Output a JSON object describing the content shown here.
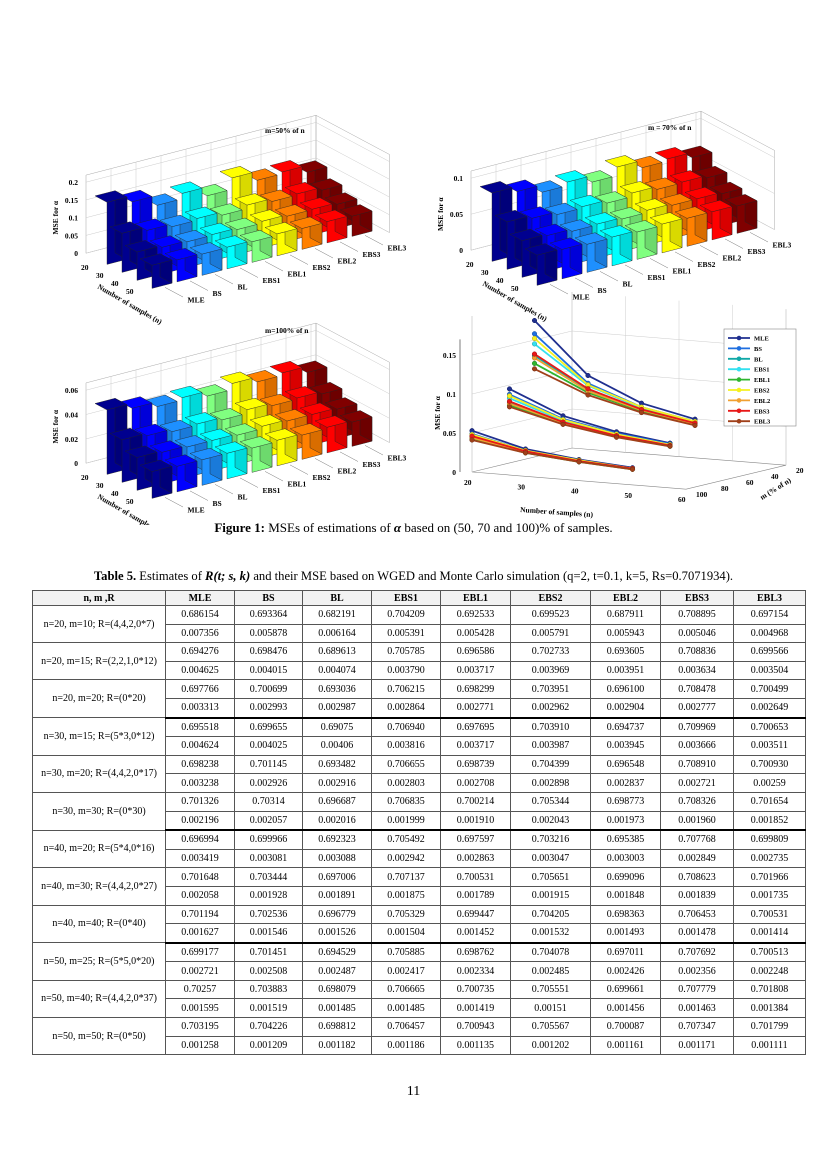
{
  "figure": {
    "caption_label": "Figure 1:",
    "caption_text_1": " MSEs of estimations of ",
    "caption_symbol": "α",
    "caption_text_2": " based on (50, 70 and 100)% of samples."
  },
  "chart_data": [
    {
      "type": "bar3d",
      "title": "m=50% of n",
      "zlabel": "MSE for α",
      "ylabel": "Number of samples (n)",
      "zticks": [
        "0",
        "0.05",
        "0.1",
        "0.15",
        "0.2"
      ],
      "zlim": [
        0,
        0.2
      ],
      "n": [
        20,
        30,
        40,
        50
      ],
      "methods": [
        "MLE",
        "BS",
        "BL",
        "EBS1",
        "EBL1",
        "EBS2",
        "EBL2",
        "EBS3",
        "EBL3"
      ],
      "values": [
        [
          0.175,
          0.11,
          0.08,
          0.065
        ],
        [
          0.158,
          0.1,
          0.075,
          0.062
        ],
        [
          0.13,
          0.092,
          0.072,
          0.06
        ],
        [
          0.145,
          0.097,
          0.074,
          0.061
        ],
        [
          0.12,
          0.088,
          0.07,
          0.058
        ],
        [
          0.152,
          0.098,
          0.075,
          0.062
        ],
        [
          0.127,
          0.09,
          0.071,
          0.059
        ],
        [
          0.132,
          0.093,
          0.072,
          0.06
        ],
        [
          0.113,
          0.085,
          0.068,
          0.057
        ]
      ]
    },
    {
      "type": "bar3d",
      "title": "m = 70% of n",
      "zlabel": "MSE for α",
      "ylabel": "Number of samples (n)",
      "zticks": [
        "0",
        "0.05",
        "0.1"
      ],
      "zlim": [
        0,
        0.1
      ],
      "n": [
        20,
        30,
        40,
        50
      ],
      "methods": [
        "MLE",
        "BS",
        "BL",
        "EBS1",
        "EBL1",
        "EBS2",
        "EBL2",
        "EBS3",
        "EBL3"
      ],
      "values": [
        [
          0.095,
          0.066,
          0.051,
          0.042
        ],
        [
          0.088,
          0.062,
          0.049,
          0.041
        ],
        [
          0.078,
          0.058,
          0.046,
          0.039
        ],
        [
          0.083,
          0.06,
          0.047,
          0.04
        ],
        [
          0.074,
          0.056,
          0.045,
          0.038
        ],
        [
          0.086,
          0.061,
          0.048,
          0.04
        ],
        [
          0.076,
          0.057,
          0.046,
          0.039
        ],
        [
          0.079,
          0.058,
          0.046,
          0.039
        ],
        [
          0.072,
          0.055,
          0.044,
          0.038
        ]
      ]
    },
    {
      "type": "bar3d",
      "title": "m=100% of n",
      "zlabel": "MSE for α",
      "ylabel": "Number of samples (n)",
      "zticks": [
        "0",
        "0.02",
        "0.04",
        "0.06"
      ],
      "zlim": [
        0,
        0.06
      ],
      "n": [
        20,
        30,
        40,
        50
      ],
      "methods": [
        "MLE",
        "BS",
        "BL",
        "EBS1",
        "EBL1",
        "EBS2",
        "EBL2",
        "EBS3",
        "EBL3"
      ],
      "values": [
        [
          0.053,
          0.035,
          0.027,
          0.022
        ],
        [
          0.049,
          0.033,
          0.026,
          0.021
        ],
        [
          0.045,
          0.031,
          0.025,
          0.021
        ],
        [
          0.047,
          0.032,
          0.025,
          0.021
        ],
        [
          0.043,
          0.03,
          0.024,
          0.02
        ],
        [
          0.048,
          0.033,
          0.026,
          0.021
        ],
        [
          0.044,
          0.031,
          0.025,
          0.02
        ],
        [
          0.046,
          0.032,
          0.025,
          0.021
        ],
        [
          0.041,
          0.03,
          0.024,
          0.02
        ]
      ]
    },
    {
      "type": "line3d",
      "zlabel": "MSE for α",
      "xlabel": "Number of samples (n)",
      "ylabel": "m (% of n)",
      "zticks": [
        "0",
        "0.05",
        "0.1",
        "0.15"
      ],
      "xticks": [
        "20",
        "30",
        "40",
        "50",
        "60"
      ],
      "yticks": [
        "20",
        "40",
        "60",
        "80",
        "100"
      ],
      "n": [
        20,
        30,
        40,
        50
      ],
      "m": [
        50,
        70,
        100
      ],
      "legend_position": "top-right",
      "series": [
        {
          "name": "MLE",
          "color": "#1f2f8f",
          "values": [
            [
              0.175,
              0.11,
              0.08,
              0.065
            ],
            [
              0.095,
              0.066,
              0.051,
              0.042
            ],
            [
              0.053,
              0.035,
              0.027,
              0.022
            ]
          ]
        },
        {
          "name": "BS",
          "color": "#1f6fe0",
          "values": [
            [
              0.158,
              0.1,
              0.075,
              0.062
            ],
            [
              0.088,
              0.062,
              0.049,
              0.041
            ],
            [
              0.049,
              0.033,
              0.026,
              0.021
            ]
          ]
        },
        {
          "name": "BL",
          "color": "#10a8a8",
          "values": [
            [
              0.13,
              0.092,
              0.072,
              0.06
            ],
            [
              0.078,
              0.058,
              0.046,
              0.039
            ],
            [
              0.045,
              0.031,
              0.025,
              0.021
            ]
          ]
        },
        {
          "name": "EBS1",
          "color": "#33e0f0",
          "values": [
            [
              0.145,
              0.097,
              0.074,
              0.061
            ],
            [
              0.083,
              0.06,
              0.047,
              0.04
            ],
            [
              0.047,
              0.032,
              0.025,
              0.021
            ]
          ]
        },
        {
          "name": "EBL1",
          "color": "#2fb52f",
          "values": [
            [
              0.12,
              0.088,
              0.07,
              0.058
            ],
            [
              0.074,
              0.056,
              0.045,
              0.038
            ],
            [
              0.043,
              0.03,
              0.024,
              0.02
            ]
          ]
        },
        {
          "name": "EBS2",
          "color": "#f5f020",
          "values": [
            [
              0.152,
              0.098,
              0.075,
              0.062
            ],
            [
              0.086,
              0.061,
              0.048,
              0.04
            ],
            [
              0.048,
              0.033,
              0.026,
              0.021
            ]
          ]
        },
        {
          "name": "EBL2",
          "color": "#f0a030",
          "values": [
            [
              0.127,
              0.09,
              0.071,
              0.059
            ],
            [
              0.076,
              0.057,
              0.046,
              0.039
            ],
            [
              0.044,
              0.031,
              0.025,
              0.02
            ]
          ]
        },
        {
          "name": "EBS3",
          "color": "#e81818",
          "values": [
            [
              0.132,
              0.093,
              0.072,
              0.06
            ],
            [
              0.079,
              0.058,
              0.046,
              0.039
            ],
            [
              0.046,
              0.032,
              0.025,
              0.021
            ]
          ]
        },
        {
          "name": "EBL3",
          "color": "#a0401a",
          "values": [
            [
              0.113,
              0.085,
              0.068,
              0.057
            ],
            [
              0.072,
              0.055,
              0.044,
              0.038
            ],
            [
              0.041,
              0.03,
              0.024,
              0.02
            ]
          ]
        }
      ]
    }
  ],
  "method_colors": [
    "#00008f",
    "#0000ff",
    "#1e90ff",
    "#00ffff",
    "#80ff80",
    "#ffff00",
    "#ff8000",
    "#ff0000",
    "#800000"
  ],
  "table": {
    "caption_label": "Table 5.",
    "caption_text_1": " Estimates of ",
    "caption_math": "R(t; s, k)",
    "caption_text_2": " and their MSE based on WGED and Monte Carlo simulation (q=2, t=0.1, k=5, Rs=0.7071934).",
    "headers": [
      "n, m ,R",
      "MLE",
      "BS",
      "BL",
      "EBS1",
      "EBL1",
      "EBS2",
      "EBL2",
      "EBS3",
      "EBL3"
    ],
    "groups": [
      {
        "label": "n=20, m=10; R=(4,4,2,0*7)",
        "est": [
          "0.686154",
          "0.693364",
          "0.682191",
          "0.704209",
          "0.692533",
          "0.699523",
          "0.687911",
          "0.708895",
          "0.697154"
        ],
        "mse": [
          "0.007356",
          "0.005878",
          "0.006164",
          "0.005391",
          "0.005428",
          "0.005791",
          "0.005943",
          "0.005046",
          "0.004968"
        ]
      },
      {
        "label": "n=20, m=15; R=(2,2,1,0*12)",
        "est": [
          "0.694276",
          "0.698476",
          "0.689613",
          "0.705785",
          "0.696586",
          "0.702733",
          "0.693605",
          "0.708836",
          "0.699566"
        ],
        "mse": [
          "0.004625",
          "0.004015",
          "0.004074",
          "0.003790",
          "0.003717",
          "0.003969",
          "0.003951",
          "0.003634",
          "0.003504"
        ]
      },
      {
        "label": "n=20, m=20; R=(0*20)",
        "est": [
          "0.697766",
          "0.700699",
          "0.693036",
          "0.706215",
          "0.698299",
          "0.703951",
          "0.696100",
          "0.708478",
          "0.700499"
        ],
        "mse": [
          "0.003313",
          "0.002993",
          "0.002987",
          "0.002864",
          "0.002771",
          "0.002962",
          "0.002904",
          "0.002777",
          "0.002649"
        ]
      },
      {
        "label": "n=30, m=15; R=(5*3,0*12)",
        "est": [
          "0.695518",
          "0.699655",
          "0.69075",
          "0.706940",
          "0.697695",
          "0.703910",
          "0.694737",
          "0.709969",
          "0.700653"
        ],
        "mse": [
          "0.004624",
          "0.004025",
          "0.00406",
          "0.003816",
          "0.003717",
          "0.003987",
          "0.003945",
          "0.003666",
          "0.003511"
        ]
      },
      {
        "label": "n=30, m=20; R=(4,4,2,0*17)",
        "est": [
          "0.698238",
          "0.701145",
          "0.693482",
          "0.706655",
          "0.698739",
          "0.704399",
          "0.696548",
          "0.708910",
          "0.700930"
        ],
        "mse": [
          "0.003238",
          "0.002926",
          "0.002916",
          "0.002803",
          "0.002708",
          "0.002898",
          "0.002837",
          "0.002721",
          "0.00259"
        ]
      },
      {
        "label": "n=30, m=30; R=(0*30)",
        "est": [
          "0.701326",
          "0.70314",
          "0.696687",
          "0.706835",
          "0.700214",
          "0.705344",
          "0.698773",
          "0.708326",
          "0.701654"
        ],
        "mse": [
          "0.002196",
          "0.002057",
          "0.002016",
          "0.001999",
          "0.001910",
          "0.002043",
          "0.001973",
          "0.001960",
          "0.001852"
        ]
      },
      {
        "label": "n=40, m=20; R=(5*4,0*16)",
        "est": [
          "0.696994",
          "0.699966",
          "0.692323",
          "0.705492",
          "0.697597",
          "0.703216",
          "0.695385",
          "0.707768",
          "0.699809"
        ],
        "mse": [
          "0.003419",
          "0.003081",
          "0.003088",
          "0.002942",
          "0.002863",
          "0.003047",
          "0.003003",
          "0.002849",
          "0.002735"
        ]
      },
      {
        "label": "n=40, m=30; R=(4,4,2,0*27)",
        "est": [
          "0.701648",
          "0.703444",
          "0.697006",
          "0.707137",
          "0.700531",
          "0.705651",
          "0.699096",
          "0.708623",
          "0.701966"
        ],
        "mse": [
          "0.002058",
          "0.001928",
          "0.001891",
          "0.001875",
          "0.001789",
          "0.001915",
          "0.001848",
          "0.001839",
          "0.001735"
        ]
      },
      {
        "label": "n=40, m=40; R=(0*40)",
        "est": [
          "0.701194",
          "0.702536",
          "0.696779",
          "0.705329",
          "0.699447",
          "0.704205",
          "0.698363",
          "0.706453",
          "0.700531"
        ],
        "mse": [
          "0.001627",
          "0.001546",
          "0.001526",
          "0.001504",
          "0.001452",
          "0.001532",
          "0.001493",
          "0.001478",
          "0.001414"
        ]
      },
      {
        "label": "n=50, m=25; R=(5*5,0*20)",
        "est": [
          "0.699177",
          "0.701451",
          "0.694529",
          "0.705885",
          "0.698762",
          "0.704078",
          "0.697011",
          "0.707692",
          "0.700513"
        ],
        "mse": [
          "0.002721",
          "0.002508",
          "0.002487",
          "0.002417",
          "0.002334",
          "0.002485",
          "0.002426",
          "0.002356",
          "0.002248"
        ]
      },
      {
        "label": "n=50, m=40; R=(4,4,2,0*37)",
        "est": [
          "0.70257",
          "0.703883",
          "0.698079",
          "0.706665",
          "0.700735",
          "0.705551",
          "0.699661",
          "0.707779",
          "0.701808"
        ],
        "mse": [
          "0.001595",
          "0.001519",
          "0.001485",
          "0.001485",
          "0.001419",
          "0.00151",
          "0.001456",
          "0.001463",
          "0.001384"
        ]
      },
      {
        "label": "n=50, m=50; R=(0*50)",
        "est": [
          "0.703195",
          "0.704226",
          "0.698812",
          "0.706457",
          "0.700943",
          "0.705567",
          "0.700087",
          "0.707347",
          "0.701799"
        ],
        "mse": [
          "0.001258",
          "0.001209",
          "0.001182",
          "0.001186",
          "0.001135",
          "0.001202",
          "0.001161",
          "0.001171",
          "0.001111"
        ]
      }
    ]
  },
  "page_number": "11"
}
